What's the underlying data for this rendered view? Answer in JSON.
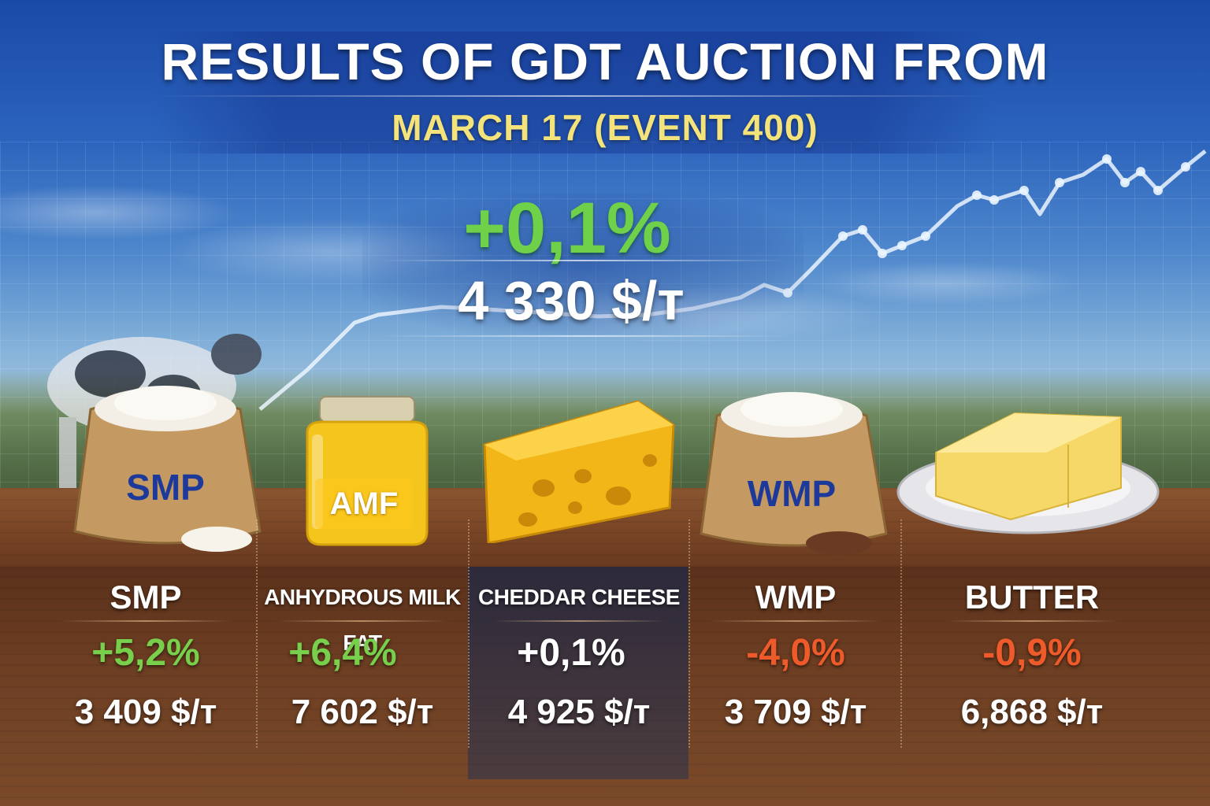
{
  "header": {
    "title": "RESULTS OF GDT AUCTION FROM",
    "subtitle": "MARCH 17 (EVENT 400)"
  },
  "overall": {
    "change": "+0,1%",
    "price": "4 330 $/т",
    "direction": "up"
  },
  "products": [
    {
      "label": "SMP",
      "name": "SMP",
      "change": "+5,2%",
      "price": "3 409 $/т",
      "direction": "up"
    },
    {
      "label": "AMF",
      "name": "ANHYDROUS MILK FAT",
      "change": "+6,4%",
      "price": "7 602 $/т",
      "direction": "up"
    },
    {
      "label": "",
      "name": "CHEDDAR CHEESE",
      "change": "+0,1%",
      "price": "4 925 $/т",
      "direction": "neutral"
    },
    {
      "label": "WMP",
      "name": "WMP",
      "change": "-4,0%",
      "price": "3 709 $/т",
      "direction": "down"
    },
    {
      "label": "",
      "name": "BUTTER",
      "change": "-0,9%",
      "price": "6,868 $/т",
      "direction": "down"
    }
  ],
  "colors": {
    "positive": "#78cf4c",
    "negative": "#ee5a2a",
    "neutral": "#ffffff",
    "subtitle": "#f4e27a",
    "bag_label": "#1d3a9a"
  },
  "icons": [
    "smp-sack-icon",
    "amf-jar-icon",
    "cheese-wedge-icon",
    "wmp-sack-icon",
    "butter-plate-icon",
    "cow-icon",
    "trend-line-icon"
  ]
}
